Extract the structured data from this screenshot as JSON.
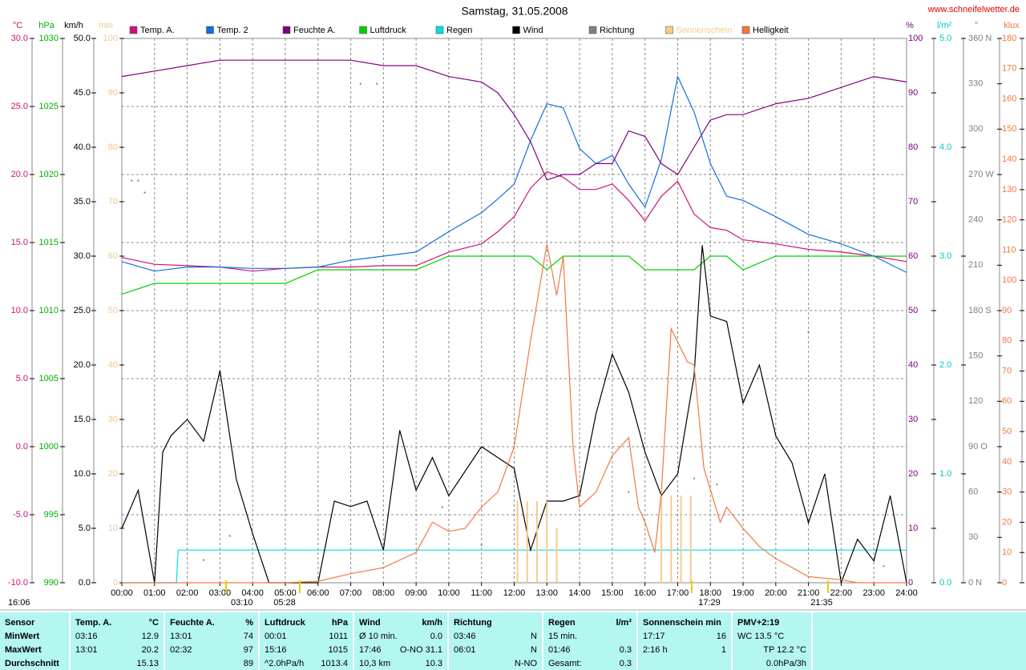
{
  "chart_data": {
    "type": "line",
    "title": "Samstag, 31.05.2008",
    "source": "www.schneifelwetter.de",
    "xlim": [
      0,
      24
    ],
    "xticks": [
      {
        "value": 0,
        "label": "00:00"
      },
      {
        "value": 1,
        "label": "01:00"
      },
      {
        "value": 2,
        "label": "02:00"
      },
      {
        "value": 3,
        "label": "03:00"
      },
      {
        "value": 4,
        "label": "04:00"
      },
      {
        "value": 5,
        "label": "05:00"
      },
      {
        "value": 6,
        "label": "06:00"
      },
      {
        "value": 7,
        "label": "07:00"
      },
      {
        "value": 8,
        "label": "08:00"
      },
      {
        "value": 9,
        "label": "09:00"
      },
      {
        "value": 10,
        "label": "10:00"
      },
      {
        "value": 11,
        "label": "11:00"
      },
      {
        "value": 12,
        "label": "12:00"
      },
      {
        "value": 13,
        "label": "13:00"
      },
      {
        "value": 14,
        "label": "14:00"
      },
      {
        "value": 15,
        "label": "15:00"
      },
      {
        "value": 16,
        "label": "16:00"
      },
      {
        "value": 17,
        "label": "17:00"
      },
      {
        "value": 18,
        "label": "18:00"
      },
      {
        "value": 19,
        "label": "19:00"
      },
      {
        "value": 20,
        "label": "20:00"
      },
      {
        "value": 21,
        "label": "21:00"
      },
      {
        "value": 22,
        "label": "22:00"
      },
      {
        "value": 23,
        "label": "23:00"
      },
      {
        "value": 24,
        "label": "24:00"
      }
    ],
    "grid": true,
    "axes": [
      {
        "unit": "°C",
        "color": "#d0107a",
        "ylim": [
          -10,
          30
        ],
        "yticks": [
          {
            "value": -10,
            "label": "-10.0"
          },
          {
            "value": -5,
            "label": "-5.0"
          },
          {
            "value": 0,
            "label": "0.0"
          },
          {
            "value": 5,
            "label": "5.0"
          },
          {
            "value": 10,
            "label": "10.0"
          },
          {
            "value": 15,
            "label": "15.0"
          },
          {
            "value": 20,
            "label": "20.0"
          },
          {
            "value": 25,
            "label": "25.0"
          },
          {
            "value": 30,
            "label": "30.0"
          }
        ]
      },
      {
        "unit": "hPa",
        "color": "#00b000",
        "ylim": [
          990,
          1030
        ],
        "yticks": [
          990,
          995,
          1000,
          1005,
          1010,
          1015,
          1020,
          1025,
          1030
        ]
      },
      {
        "unit": "km/h",
        "color": "#000000",
        "ylim": [
          0,
          50
        ],
        "yticks": [
          {
            "value": 0,
            "label": "0.0"
          },
          {
            "value": 5,
            "label": "5.0"
          },
          {
            "value": 10,
            "label": "10.0"
          },
          {
            "value": 15,
            "label": "15.0"
          },
          {
            "value": 20,
            "label": "20.0"
          },
          {
            "value": 25,
            "label": "25.0"
          },
          {
            "value": 30,
            "label": "30.0"
          },
          {
            "value": 35,
            "label": "35.0"
          },
          {
            "value": 40,
            "label": "40.0"
          },
          {
            "value": 45,
            "label": "45.0"
          },
          {
            "value": 50,
            "label": "50.0"
          }
        ]
      },
      {
        "unit": "min",
        "color": "#f0c890",
        "ylim": [
          0,
          100
        ],
        "yticks": [
          0,
          10,
          20,
          30,
          40,
          50,
          60,
          70,
          80,
          90,
          100
        ]
      },
      {
        "unit": "%",
        "color": "#800080",
        "ylim": [
          0,
          100
        ],
        "yticks": [
          0,
          10,
          20,
          30,
          40,
          50,
          60,
          70,
          80,
          90,
          100
        ]
      },
      {
        "unit": "l/m²",
        "color": "#00c8c8",
        "ylim": [
          0,
          5
        ],
        "yticks": [
          {
            "value": 0,
            "label": "0.0"
          },
          {
            "value": 1,
            "label": "1.0"
          },
          {
            "value": 2,
            "label": "2.0"
          },
          {
            "value": 3,
            "label": "3.0"
          },
          {
            "value": 4,
            "label": "4.0"
          },
          {
            "value": 5,
            "label": "5.0"
          }
        ]
      },
      {
        "unit": "°",
        "color": "#808080",
        "ylim": [
          0,
          360
        ],
        "yticks": [
          {
            "value": 0,
            "label": "0 N"
          },
          30,
          60,
          {
            "value": 90,
            "label": "90 O"
          },
          120,
          150,
          {
            "value": 180,
            "label": "180 S"
          },
          210,
          240,
          {
            "value": 270,
            "label": "270 W"
          },
          300,
          330,
          {
            "value": 360,
            "label": "360 N"
          }
        ]
      },
      {
        "unit": "klux",
        "color": "#f07840",
        "ylim": [
          0,
          180
        ],
        "yticks": [
          0,
          10,
          20,
          30,
          40,
          50,
          60,
          70,
          80,
          90,
          100,
          110,
          120,
          130,
          140,
          150,
          160,
          170,
          180
        ]
      }
    ],
    "series": [
      {
        "name": "Temp. A.",
        "color": "#d0107a",
        "axis": 0,
        "x": [
          0,
          1,
          2,
          3,
          4,
          5,
          6,
          7,
          8,
          9,
          10,
          11,
          11.5,
          12,
          12.5,
          13,
          13.5,
          14,
          14.5,
          15,
          15.5,
          16,
          16.5,
          17,
          17.5,
          18,
          18.5,
          19,
          20,
          21,
          22,
          23,
          24
        ],
        "values": [
          13.9,
          13.4,
          13.3,
          13.2,
          12.9,
          13.1,
          13.2,
          13.2,
          13.3,
          13.3,
          14.3,
          14.9,
          15.8,
          16.9,
          19.0,
          20.2,
          19.8,
          18.9,
          18.9,
          19.3,
          18.1,
          16.6,
          18.4,
          19.5,
          17.1,
          16.1,
          15.9,
          15.2,
          14.9,
          14.5,
          14.3,
          14.0,
          13.6
        ]
      },
      {
        "name": "Temp. 2",
        "color": "#1070e0",
        "axis": 0,
        "x": [
          0,
          1,
          2,
          3,
          4,
          5,
          6,
          7,
          8,
          9,
          10,
          11,
          11.5,
          12,
          12.5,
          13,
          13.5,
          14,
          14.5,
          15,
          15.5,
          16,
          16.5,
          17,
          17.5,
          18,
          18.5,
          19,
          20,
          21,
          22,
          23,
          24
        ],
        "values": [
          13.6,
          12.9,
          13.2,
          13.2,
          13.1,
          13.1,
          13.2,
          13.7,
          14.0,
          14.3,
          15.8,
          17.2,
          18.2,
          19.3,
          22.5,
          25.2,
          24.9,
          21.9,
          20.8,
          21.4,
          19.3,
          17.6,
          21.1,
          27.2,
          24.6,
          20.8,
          18.4,
          18.1,
          16.9,
          15.6,
          14.9,
          14.0,
          12.8
        ]
      },
      {
        "name": "Feuchte A.",
        "color": "#800080",
        "axis": 4,
        "x": [
          0,
          1,
          2,
          3,
          4,
          5,
          6,
          7,
          8,
          9,
          10,
          11,
          11.5,
          12,
          12.5,
          13,
          13.5,
          14,
          14.5,
          15,
          15.5,
          16,
          16.5,
          17,
          17.5,
          18,
          18.5,
          19,
          20,
          21,
          22,
          23,
          24
        ],
        "values": [
          93,
          94,
          95,
          96,
          96,
          96,
          96,
          96,
          95,
          95,
          93,
          92,
          90,
          86,
          81,
          74,
          75,
          75,
          77,
          77,
          83,
          82,
          77,
          75,
          80,
          85,
          86,
          86,
          88,
          89,
          91,
          93,
          92
        ]
      },
      {
        "name": "Luftdruck",
        "color": "#00d000",
        "axis": 1,
        "x": [
          0,
          1,
          2,
          3,
          4,
          5,
          6,
          7,
          8,
          9,
          10,
          11,
          11.5,
          12,
          12.5,
          13,
          13.5,
          14,
          14.5,
          15,
          15.5,
          16,
          16.5,
          17,
          17.5,
          18,
          18.5,
          19,
          20,
          21,
          22,
          23,
          24
        ],
        "values": [
          1011.2,
          1012,
          1012,
          1012,
          1012,
          1012,
          1013,
          1013,
          1013,
          1013,
          1014,
          1014,
          1014,
          1014,
          1014,
          1013,
          1014,
          1014,
          1014,
          1014,
          1014,
          1013,
          1013,
          1013,
          1013,
          1014,
          1014,
          1013,
          1014,
          1014,
          1014,
          1014,
          1014
        ]
      },
      {
        "name": "Regen",
        "color": "#00e0e0",
        "axis": 5,
        "x": [
          0,
          1.67,
          1.72,
          24
        ],
        "values": [
          0,
          0,
          0.3,
          0.3
        ]
      },
      {
        "name": "Wind",
        "color": "#000000",
        "axis": 2,
        "x": [
          0,
          0.5,
          1,
          1.25,
          1.5,
          2,
          2.5,
          3,
          3.5,
          4,
          4.5,
          5,
          6,
          6.5,
          7,
          7.5,
          8,
          8.5,
          9,
          9.5,
          10,
          11,
          11.5,
          12,
          12.5,
          13,
          13.5,
          14,
          14.5,
          15,
          15.5,
          16,
          16.5,
          17,
          17.5,
          17.75,
          18,
          18.5,
          19,
          19.5,
          20,
          20.5,
          21,
          21.5,
          22,
          22.5,
          23,
          23.5,
          24
        ],
        "values": [
          5,
          8.5,
          0,
          12,
          13.5,
          15,
          13,
          19.5,
          9.5,
          4.5,
          0,
          0,
          0,
          7.5,
          7,
          7.5,
          3,
          14,
          8.5,
          11.5,
          8,
          12.5,
          11.5,
          10.5,
          3,
          7.5,
          7.5,
          8,
          15.5,
          21,
          17.5,
          12,
          8,
          10,
          19,
          31,
          24.5,
          24,
          16.5,
          20,
          13.5,
          11,
          5.5,
          10,
          0,
          4,
          2,
          8,
          0
        ]
      },
      {
        "name": "Richtung",
        "color": "#808080",
        "axis": 6,
        "marker": "dot",
        "x": [
          0.3,
          0.5,
          0.7,
          2.5,
          3.3,
          7.3,
          7.8,
          9.8,
          11,
          15.5,
          17.5,
          18.2,
          21,
          21.5,
          23.3
        ],
        "values": [
          266,
          266,
          258,
          15,
          31,
          330,
          330,
          50,
          25,
          60,
          69,
          65,
          166,
          70,
          11
        ]
      },
      {
        "name": "Sonnenschein",
        "color": "#f5cc8a",
        "axis": 3,
        "marker": "bar",
        "x": [
          12.1,
          12.4,
          12.7,
          13.0,
          13.3,
          16.5,
          16.8,
          17.1,
          17.4
        ],
        "values": [
          15,
          15,
          15,
          15,
          10,
          16,
          16,
          16,
          16
        ]
      },
      {
        "name": "Helligkeit",
        "color": "#f07840",
        "axis": 7,
        "x": [
          0,
          5,
          6,
          7,
          8,
          9,
          9.5,
          10,
          10.5,
          11,
          11.5,
          12,
          12.5,
          13,
          13.3,
          13.5,
          13.8,
          14,
          14.5,
          15,
          15.5,
          15.8,
          16,
          16.3,
          16.5,
          16.8,
          17.3,
          17.5,
          17.8,
          18.3,
          18.5,
          19,
          19.5,
          20,
          21,
          22,
          22.5,
          24
        ],
        "values": [
          0,
          0,
          0.5,
          3,
          5,
          10,
          20,
          17,
          18,
          25,
          30,
          45,
          80,
          112,
          95,
          108,
          45,
          25,
          30,
          42,
          48,
          25,
          20,
          10,
          30,
          84,
          73,
          72,
          38,
          20,
          25,
          18,
          12,
          8,
          2,
          1,
          0,
          0
        ]
      }
    ],
    "annotations": [
      "16:06",
      "03:10",
      "05:28",
      "17:29",
      "21:35"
    ]
  },
  "table": {
    "header": [
      [
        "Sensor"
      ],
      [
        "Temp. A.",
        "°C"
      ],
      [
        "Feuchte A.",
        "%"
      ],
      [
        "Luftdruck",
        "hPa"
      ],
      [
        "Wind",
        "km/h"
      ],
      [
        "Richtung"
      ],
      [
        "Regen",
        "l/m²"
      ],
      [
        "Sonnenschein min"
      ],
      [
        "PMV+2:19"
      ]
    ],
    "rows": [
      [
        [
          "MinWert"
        ],
        [
          "03:16",
          "12.9"
        ],
        [
          "13:01",
          "74"
        ],
        [
          "00:01",
          "1011"
        ],
        [
          "Ø 10 min.",
          "0.0"
        ],
        [
          "03:46",
          "N"
        ],
        [
          "15 min."
        ],
        [
          "17:17",
          "16"
        ],
        [
          "WC 13.5 °C"
        ]
      ],
      [
        [
          "MaxWert"
        ],
        [
          "13:01",
          "20.2"
        ],
        [
          "02:32",
          "97"
        ],
        [
          "15:16",
          "1015"
        ],
        [
          "17:46",
          "O-NO 31.1"
        ],
        [
          "06:01",
          "N"
        ],
        [
          "01:46",
          "0.3"
        ],
        [
          "2:16 h",
          "1"
        ],
        [
          "TP 12.2 °C"
        ]
      ],
      [
        [
          "Durchschnitt"
        ],
        [
          "15.13"
        ],
        [
          "89"
        ],
        [
          "^2.0hPa/h",
          "1013.4"
        ],
        [
          "10,3 km",
          "10.3"
        ],
        [
          "N-NO"
        ],
        [
          "Gesamt:",
          "0.3"
        ],
        [],
        [
          "0.0hPa/3h"
        ]
      ]
    ]
  }
}
